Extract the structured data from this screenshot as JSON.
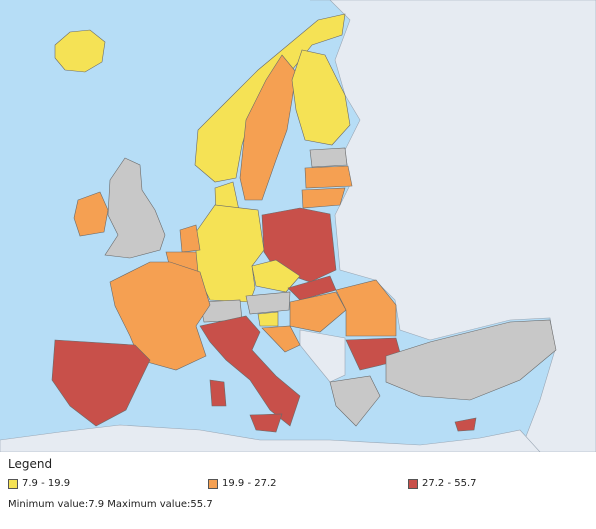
{
  "legend": {
    "title": "Legend",
    "items": [
      {
        "label": "7.9 - 19.9"
      },
      {
        "label": "19.9 - 27.2"
      },
      {
        "label": "27.2 - 55.7"
      }
    ]
  },
  "footer": "Minimum value:7.9 Maximum value:55.7"
}
